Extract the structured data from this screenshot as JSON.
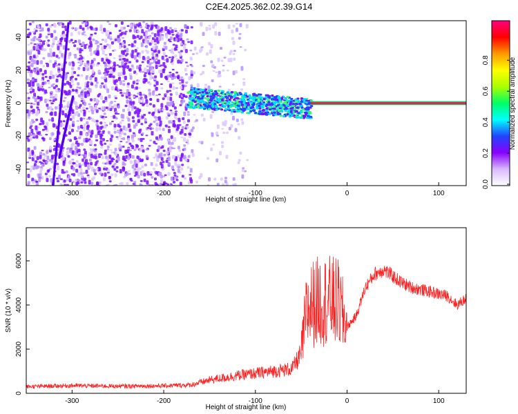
{
  "title": "C2E4.2025.362.02.39.G14",
  "chart_data": [
    {
      "type": "heatmap",
      "xlabel": "Height of straight line (km)",
      "ylabel": "Frequency (Hz)",
      "xlim": [
        -350,
        130
      ],
      "ylim": [
        -50,
        50
      ],
      "xticks": [
        -300,
        -200,
        -100,
        0,
        100
      ],
      "yticks": [
        -40,
        -20,
        0,
        20,
        40
      ],
      "colorbar": {
        "label": "Normalized spectral amplitude",
        "range": [
          0,
          1
        ],
        "ticks": [
          "0.0",
          "0.2",
          "0.4",
          "0.6",
          "0.8"
        ],
        "colors": [
          "#ffffff",
          "#d8b8ff",
          "#8800ff",
          "#2244ff",
          "#00ffff",
          "#00ff66",
          "#aaff00",
          "#ffff00",
          "#ff9900",
          "#ff0000",
          "#ff0080"
        ]
      },
      "features": {
        "signal_track_start_km": -175,
        "signal_track_end_km": 130,
        "tone_frequency_hz": 0,
        "noise_region_end_km": -170
      }
    },
    {
      "type": "line",
      "xlabel": "Height of straight line (km)",
      "ylabel": "SNR (10 * v/v)",
      "xlim": [
        -350,
        130
      ],
      "ylim": [
        0,
        7500
      ],
      "xticks": [
        -300,
        -200,
        -100,
        0,
        100
      ],
      "yticks": [
        0,
        2000,
        4000,
        6000
      ],
      "series": [
        {
          "color": "#ff2020",
          "envelope": [
            [
              -350,
              300
            ],
            [
              -300,
              350
            ],
            [
              -250,
              320
            ],
            [
              -200,
              340
            ],
            [
              -170,
              380
            ],
            [
              -150,
              600
            ],
            [
              -120,
              800
            ],
            [
              -100,
              900
            ],
            [
              -80,
              1000
            ],
            [
              -60,
              1100
            ],
            [
              -50,
              1800
            ],
            [
              -45,
              3500
            ],
            [
              -40,
              4000
            ],
            [
              -30,
              4200
            ],
            [
              -20,
              4200
            ],
            [
              -10,
              4100
            ],
            [
              0,
              3000
            ],
            [
              10,
              3500
            ],
            [
              20,
              4800
            ],
            [
              30,
              5400
            ],
            [
              40,
              5600
            ],
            [
              50,
              5300
            ],
            [
              60,
              5000
            ],
            [
              70,
              4800
            ],
            [
              80,
              4700
            ],
            [
              90,
              4600
            ],
            [
              100,
              4500
            ],
            [
              110,
              4400
            ],
            [
              120,
              4000
            ],
            [
              130,
              4300
            ]
          ]
        }
      ]
    }
  ]
}
